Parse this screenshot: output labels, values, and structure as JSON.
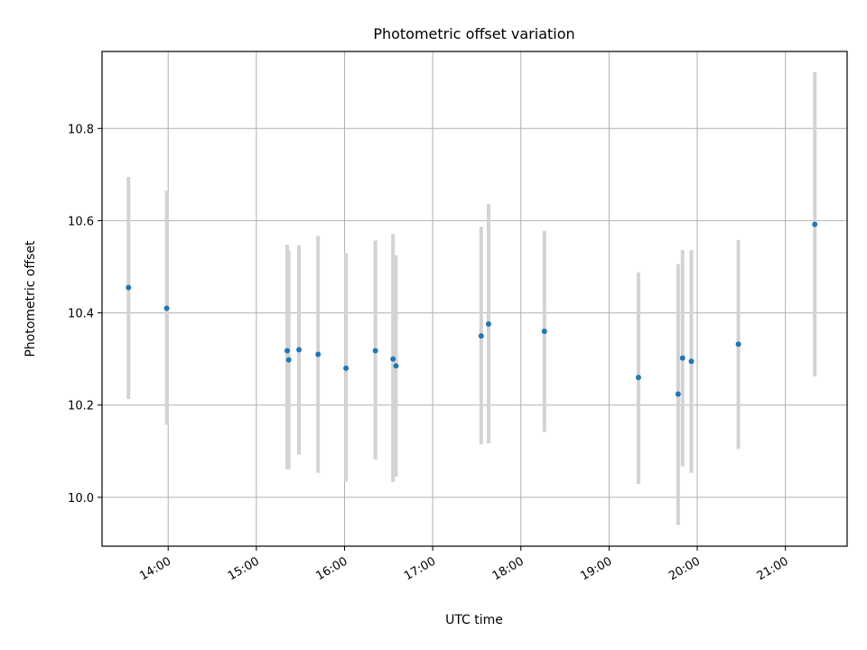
{
  "chart_data": {
    "type": "scatter",
    "title": "Photometric offset variation",
    "xlabel": "UTC time",
    "ylabel": "Photometric offset",
    "x_tick_labels": [
      "14:00",
      "15:00",
      "16:00",
      "17:00",
      "18:00",
      "19:00",
      "20:00",
      "21:00"
    ],
    "y_tick_labels": [
      "10.0",
      "10.2",
      "10.4",
      "10.6",
      "10.8"
    ],
    "y_ticks": [
      10.0,
      10.2,
      10.4,
      10.6,
      10.8
    ],
    "xlim": [
      "13:15",
      "21:42"
    ],
    "ylim": [
      9.894,
      10.967
    ],
    "grid": true,
    "colors": {
      "point": "#1f77b4",
      "errorbar": "#d3d3d3",
      "grid": "#b0b0b0"
    },
    "points": [
      {
        "x": "13:33",
        "y": 10.455,
        "ylow": 10.213,
        "yhigh": 10.695
      },
      {
        "x": "13:59",
        "y": 10.41,
        "ylow": 10.157,
        "yhigh": 10.665
      },
      {
        "x": "15:21",
        "y": 10.318,
        "ylow": 10.061,
        "yhigh": 10.548
      },
      {
        "x": "15:22",
        "y": 10.298,
        "ylow": 10.061,
        "yhigh": 10.535
      },
      {
        "x": "15:29",
        "y": 10.32,
        "ylow": 10.093,
        "yhigh": 10.547
      },
      {
        "x": "15:42",
        "y": 10.31,
        "ylow": 10.053,
        "yhigh": 10.567
      },
      {
        "x": "16:01",
        "y": 10.28,
        "ylow": 10.034,
        "yhigh": 10.53
      },
      {
        "x": "16:21",
        "y": 10.318,
        "ylow": 10.082,
        "yhigh": 10.557
      },
      {
        "x": "16:33",
        "y": 10.3,
        "ylow": 10.033,
        "yhigh": 10.571
      },
      {
        "x": "16:35",
        "y": 10.285,
        "ylow": 10.045,
        "yhigh": 10.525
      },
      {
        "x": "17:33",
        "y": 10.35,
        "ylow": 10.115,
        "yhigh": 10.587
      },
      {
        "x": "17:38",
        "y": 10.376,
        "ylow": 10.117,
        "yhigh": 10.636
      },
      {
        "x": "18:16",
        "y": 10.36,
        "ylow": 10.142,
        "yhigh": 10.578
      },
      {
        "x": "19:20",
        "y": 10.26,
        "ylow": 10.029,
        "yhigh": 10.488
      },
      {
        "x": "19:47",
        "y": 10.224,
        "ylow": 9.94,
        "yhigh": 10.506
      },
      {
        "x": "19:50",
        "y": 10.302,
        "ylow": 10.067,
        "yhigh": 10.536
      },
      {
        "x": "19:56",
        "y": 10.295,
        "ylow": 10.053,
        "yhigh": 10.536
      },
      {
        "x": "20:28",
        "y": 10.332,
        "ylow": 10.105,
        "yhigh": 10.558
      },
      {
        "x": "21:20",
        "y": 10.592,
        "ylow": 10.262,
        "yhigh": 10.922
      }
    ]
  }
}
